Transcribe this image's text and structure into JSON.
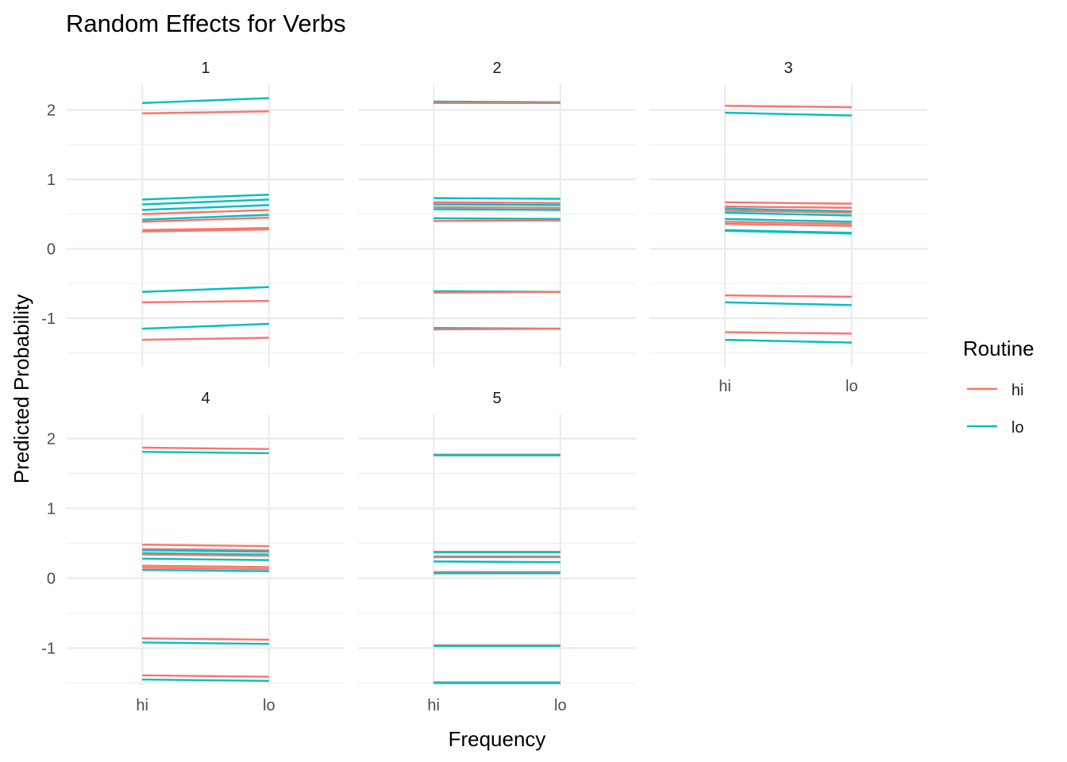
{
  "chart_data": {
    "type": "line",
    "title": "Random Effects for Verbs",
    "xlabel": "Frequency",
    "ylabel": "Predicted Probability",
    "x_categories": [
      "hi",
      "lo"
    ],
    "y_ticks": [
      -1,
      0,
      1,
      2
    ],
    "ylim": [
      -1.55,
      2.45
    ],
    "grid": true,
    "legend": {
      "title": "Routine",
      "placement": "right",
      "entries": [
        {
          "label": "hi",
          "color": "#F8766D"
        },
        {
          "label": "lo",
          "color": "#00BFC4"
        }
      ]
    },
    "colors": {
      "hi": "#F8766D",
      "lo": "#00BFC4"
    },
    "panels": [
      {
        "label": "1",
        "lines": [
          {
            "routine": "lo",
            "values": [
              2.1,
              2.17
            ]
          },
          {
            "routine": "hi",
            "values": [
              1.95,
              1.98
            ]
          },
          {
            "routine": "lo",
            "values": [
              0.71,
              0.78
            ]
          },
          {
            "routine": "lo",
            "values": [
              0.64,
              0.71
            ]
          },
          {
            "routine": "lo",
            "values": [
              0.56,
              0.63
            ]
          },
          {
            "routine": "hi",
            "values": [
              0.5,
              0.56
            ]
          },
          {
            "routine": "lo",
            "values": [
              0.42,
              0.49
            ]
          },
          {
            "routine": "hi",
            "values": [
              0.39,
              0.45
            ]
          },
          {
            "routine": "hi",
            "values": [
              0.27,
              0.3
            ]
          },
          {
            "routine": "hi",
            "values": [
              0.25,
              0.28
            ]
          },
          {
            "routine": "lo",
            "values": [
              -0.62,
              -0.55
            ]
          },
          {
            "routine": "hi",
            "values": [
              -0.77,
              -0.75
            ]
          },
          {
            "routine": "lo",
            "values": [
              -1.15,
              -1.08
            ]
          },
          {
            "routine": "hi",
            "values": [
              -1.31,
              -1.28
            ]
          }
        ]
      },
      {
        "label": "2",
        "lines": [
          {
            "routine": "lo",
            "values": [
              2.12,
              2.11
            ]
          },
          {
            "routine": "hi",
            "values": [
              2.1,
              2.1
            ]
          },
          {
            "routine": "lo",
            "values": [
              0.73,
              0.72
            ]
          },
          {
            "routine": "hi",
            "values": [
              0.67,
              0.66
            ]
          },
          {
            "routine": "lo",
            "values": [
              0.64,
              0.63
            ]
          },
          {
            "routine": "hi",
            "values": [
              0.6,
              0.59
            ]
          },
          {
            "routine": "lo",
            "values": [
              0.57,
              0.56
            ]
          },
          {
            "routine": "lo",
            "values": [
              0.44,
              0.43
            ]
          },
          {
            "routine": "hi",
            "values": [
              0.4,
              0.41
            ]
          },
          {
            "routine": "lo",
            "values": [
              -0.61,
              -0.62
            ]
          },
          {
            "routine": "hi",
            "values": [
              -0.63,
              -0.62
            ]
          },
          {
            "routine": "lo",
            "values": [
              -1.14,
              -1.15
            ]
          },
          {
            "routine": "hi",
            "values": [
              -1.16,
              -1.15
            ]
          }
        ]
      },
      {
        "label": "3",
        "lines": [
          {
            "routine": "hi",
            "values": [
              2.06,
              2.04
            ]
          },
          {
            "routine": "lo",
            "values": [
              1.96,
              1.92
            ]
          },
          {
            "routine": "hi",
            "values": [
              0.67,
              0.65
            ]
          },
          {
            "routine": "hi",
            "values": [
              0.61,
              0.59
            ]
          },
          {
            "routine": "lo",
            "values": [
              0.58,
              0.54
            ]
          },
          {
            "routine": "hi",
            "values": [
              0.55,
              0.52
            ]
          },
          {
            "routine": "lo",
            "values": [
              0.52,
              0.48
            ]
          },
          {
            "routine": "lo",
            "values": [
              0.43,
              0.39
            ]
          },
          {
            "routine": "hi",
            "values": [
              0.39,
              0.36
            ]
          },
          {
            "routine": "hi",
            "values": [
              0.36,
              0.33
            ]
          },
          {
            "routine": "lo",
            "values": [
              0.27,
              0.23
            ]
          },
          {
            "routine": "lo",
            "values": [
              0.26,
              0.22
            ]
          },
          {
            "routine": "hi",
            "values": [
              -0.67,
              -0.69
            ]
          },
          {
            "routine": "lo",
            "values": [
              -0.77,
              -0.81
            ]
          },
          {
            "routine": "hi",
            "values": [
              -1.2,
              -1.22
            ]
          },
          {
            "routine": "lo",
            "values": [
              -1.31,
              -1.35
            ]
          }
        ]
      },
      {
        "label": "4",
        "lines": [
          {
            "routine": "hi",
            "values": [
              1.87,
              1.85
            ]
          },
          {
            "routine": "lo",
            "values": [
              1.81,
              1.79
            ]
          },
          {
            "routine": "hi",
            "values": [
              0.48,
              0.46
            ]
          },
          {
            "routine": "hi",
            "values": [
              0.42,
              0.4
            ]
          },
          {
            "routine": "lo",
            "values": [
              0.4,
              0.38
            ]
          },
          {
            "routine": "lo",
            "values": [
              0.36,
              0.34
            ]
          },
          {
            "routine": "hi",
            "values": [
              0.34,
              0.32
            ]
          },
          {
            "routine": "lo",
            "values": [
              0.28,
              0.26
            ]
          },
          {
            "routine": "hi",
            "values": [
              0.18,
              0.16
            ]
          },
          {
            "routine": "hi",
            "values": [
              0.15,
              0.13
            ]
          },
          {
            "routine": "lo",
            "values": [
              0.12,
              0.1
            ]
          },
          {
            "routine": "hi",
            "values": [
              -0.86,
              -0.88
            ]
          },
          {
            "routine": "lo",
            "values": [
              -0.92,
              -0.94
            ]
          },
          {
            "routine": "hi",
            "values": [
              -1.39,
              -1.41
            ]
          },
          {
            "routine": "lo",
            "values": [
              -1.45,
              -1.47
            ]
          }
        ]
      },
      {
        "label": "5",
        "lines": [
          {
            "routine": "hi",
            "values": [
              1.77,
              1.77
            ]
          },
          {
            "routine": "lo",
            "values": [
              1.76,
              1.76
            ]
          },
          {
            "routine": "hi",
            "values": [
              0.38,
              0.38
            ]
          },
          {
            "routine": "lo",
            "values": [
              0.37,
              0.37
            ]
          },
          {
            "routine": "lo",
            "values": [
              0.31,
              0.31
            ]
          },
          {
            "routine": "hi",
            "values": [
              0.3,
              0.3
            ]
          },
          {
            "routine": "lo",
            "values": [
              0.24,
              0.23
            ]
          },
          {
            "routine": "hi",
            "values": [
              0.09,
              0.09
            ]
          },
          {
            "routine": "lo",
            "values": [
              0.07,
              0.07
            ]
          },
          {
            "routine": "hi",
            "values": [
              -0.96,
              -0.96
            ]
          },
          {
            "routine": "lo",
            "values": [
              -0.97,
              -0.97
            ]
          },
          {
            "routine": "hi",
            "values": [
              -1.49,
              -1.49
            ]
          },
          {
            "routine": "lo",
            "values": [
              -1.5,
              -1.5
            ]
          }
        ]
      }
    ]
  }
}
